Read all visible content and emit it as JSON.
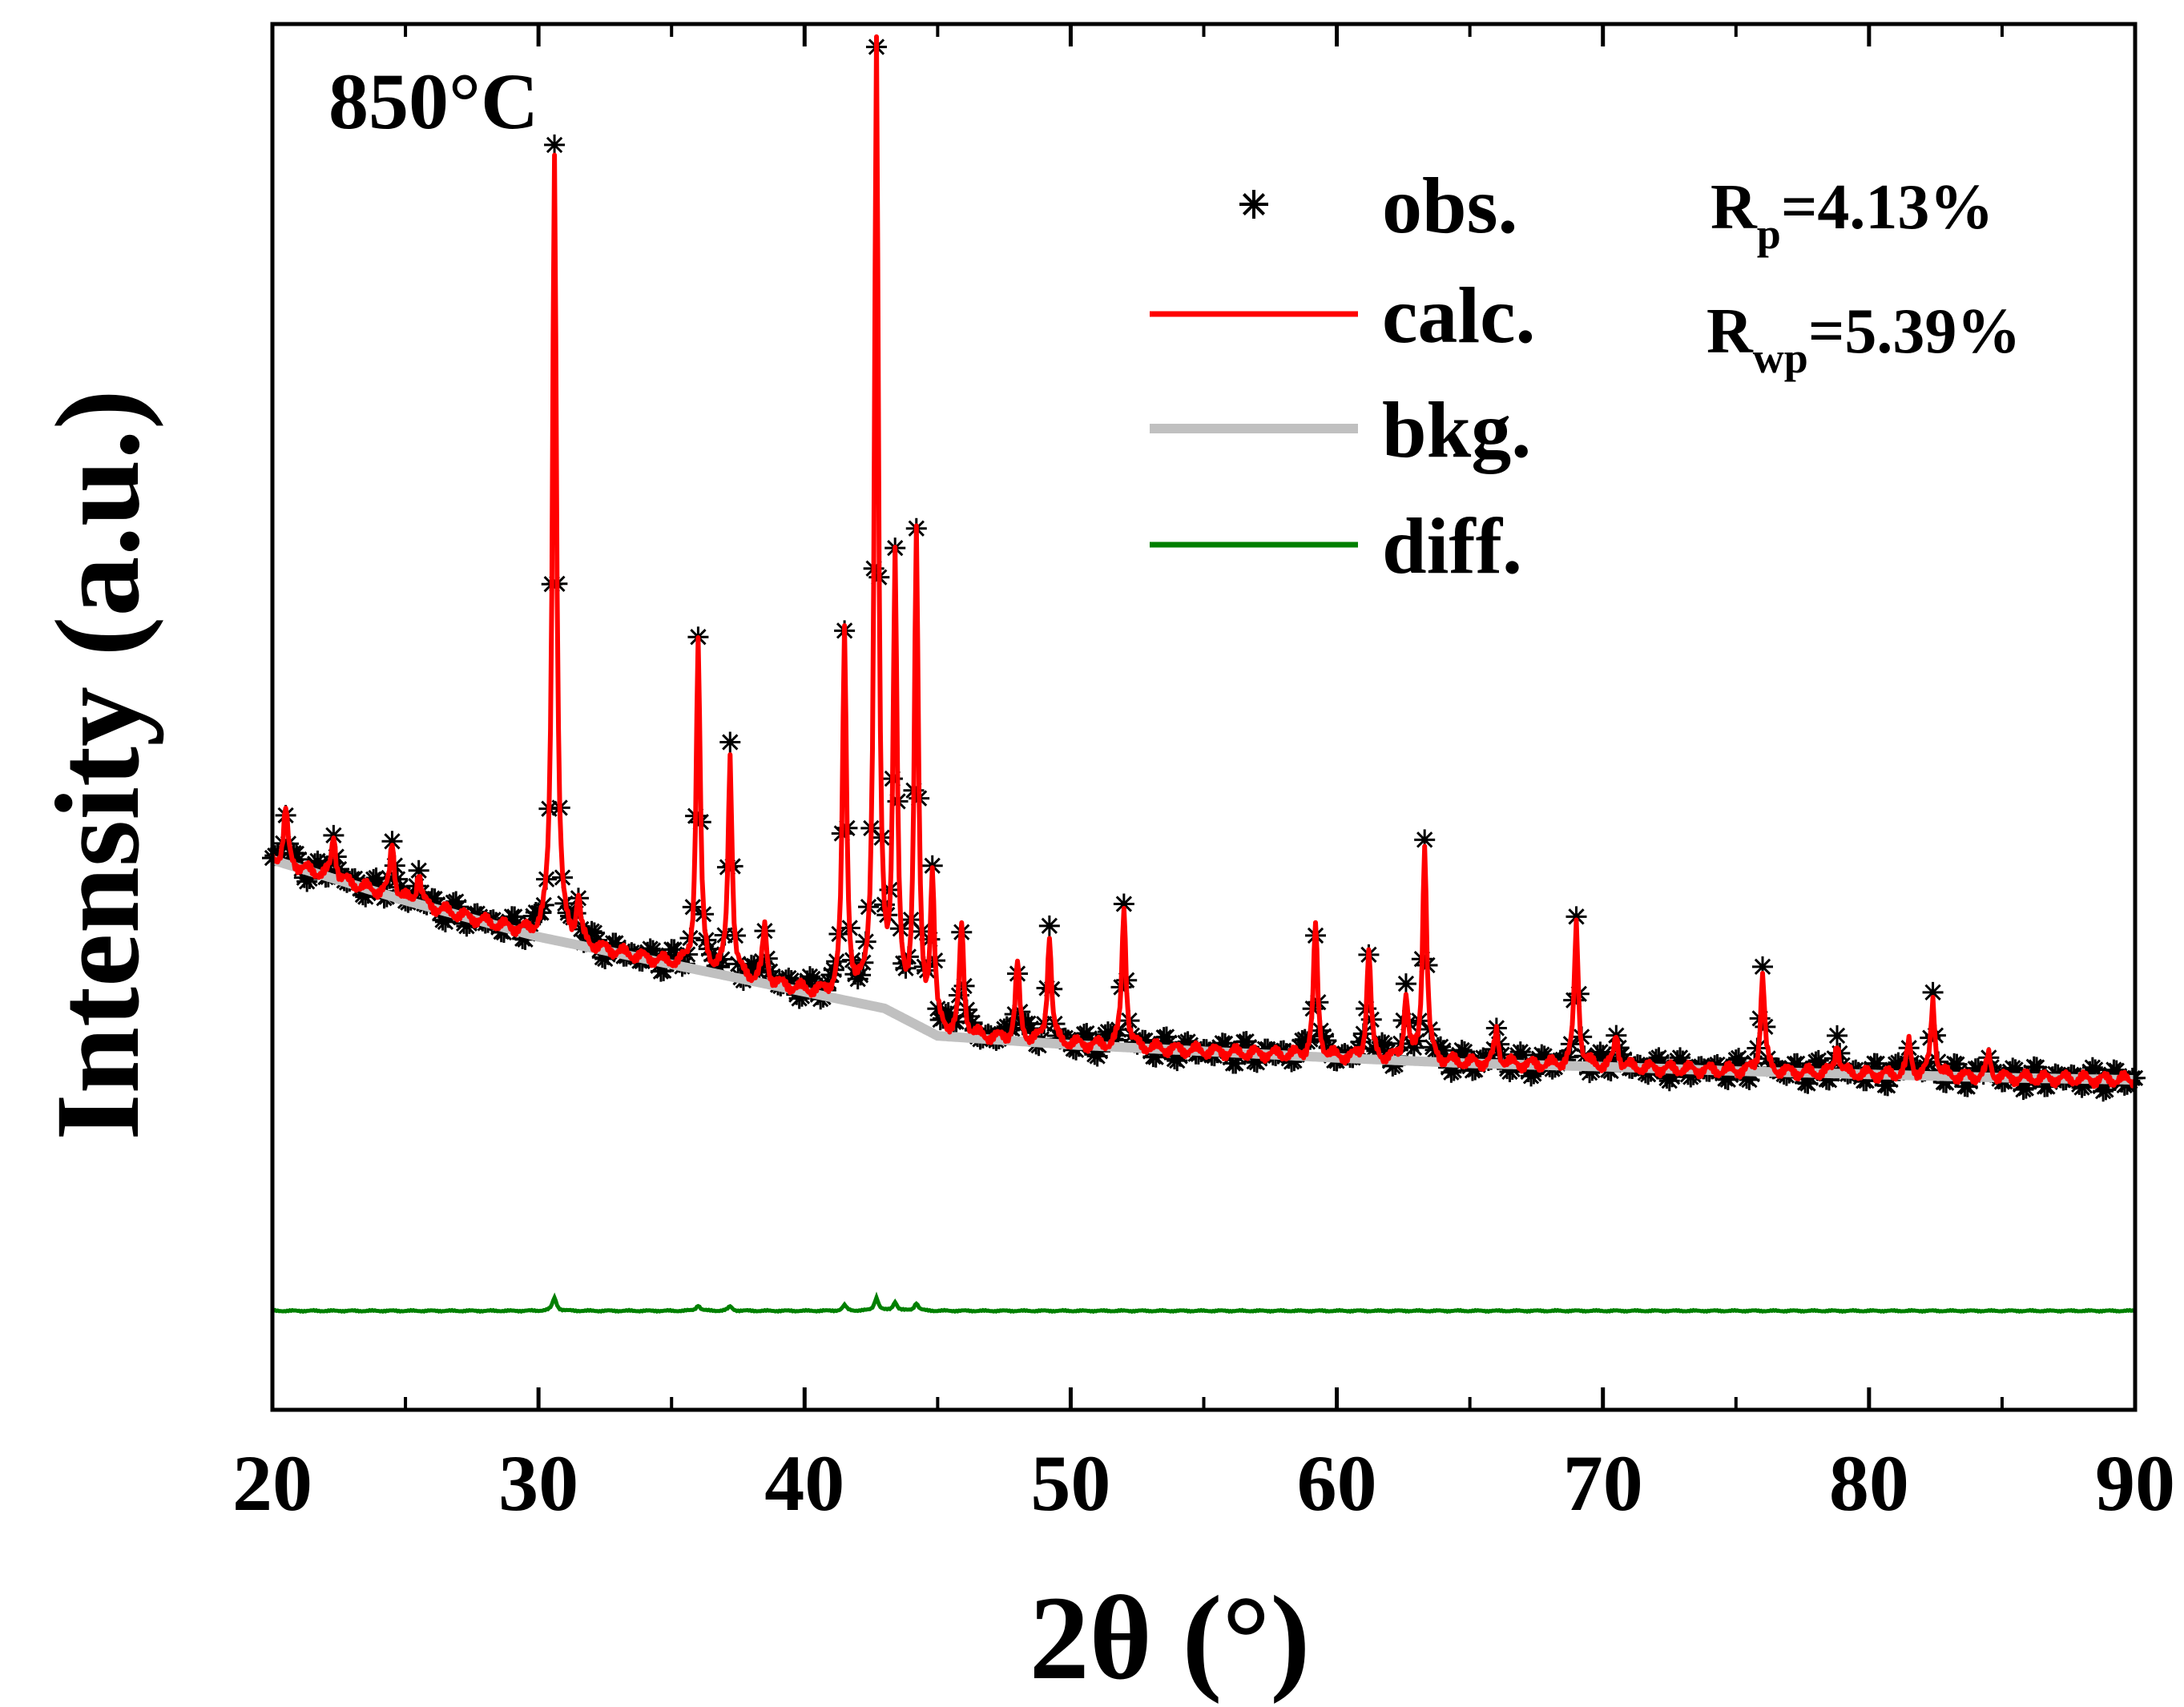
{
  "chart_data": {
    "type": "line",
    "title": "850°C",
    "xlabel": "2θ (°)",
    "ylabel": "Intensity (a.u.)",
    "xlim": [
      20,
      90
    ],
    "ylim": [
      -2.0,
      10.6
    ],
    "x_ticks": [
      20,
      30,
      40,
      50,
      60,
      70,
      80,
      90
    ],
    "x_tick_labels": [
      "20",
      "30",
      "40",
      "50",
      "60",
      "70",
      "80",
      "90"
    ],
    "y_ticks_shown": false,
    "legend_position": "top-right",
    "legend": [
      {
        "key": "obs",
        "label": "obs.",
        "marker": "asterisk",
        "color": "#000000"
      },
      {
        "key": "calc",
        "label": "calc.",
        "marker": "line",
        "color": "#ff0000"
      },
      {
        "key": "bkg",
        "label": "bkg.",
        "marker": "line",
        "color": "#c0c0c0"
      },
      {
        "key": "diff",
        "label": "diff.",
        "marker": "line",
        "color": "#008000"
      }
    ],
    "annotations": [
      {
        "id": "rp",
        "main": "R",
        "sub": "p",
        "value": "=4.13%"
      },
      {
        "id": "rwp",
        "main": "R",
        "sub": "wp",
        "value": "=5.39%"
      }
    ],
    "series": [
      {
        "name": "bkg.",
        "color": "#c0c0c0",
        "style": "line",
        "x": [
          20,
          25,
          30,
          35,
          40,
          43,
          45,
          50,
          55,
          60,
          65,
          70,
          75,
          80,
          85,
          90
        ],
        "y": [
          3.0,
          2.63,
          2.3,
          2.05,
          1.8,
          1.65,
          1.4,
          1.32,
          1.26,
          1.2,
          1.15,
          1.12,
          1.08,
          1.05,
          1.02,
          1.0
        ]
      },
      {
        "name": "calc.",
        "color": "#ff0000",
        "style": "line",
        "peaks": [
          {
            "x": 20.5,
            "h": 0.5
          },
          {
            "x": 22.3,
            "h": 0.4
          },
          {
            "x": 24.5,
            "h": 0.5
          },
          {
            "x": 25.5,
            "h": 0.3
          },
          {
            "x": 30.6,
            "h": 7.2
          },
          {
            "x": 31.5,
            "h": 0.4
          },
          {
            "x": 36.0,
            "h": 3.0
          },
          {
            "x": 37.2,
            "h": 2.0
          },
          {
            "x": 38.5,
            "h": 0.5
          },
          {
            "x": 41.5,
            "h": 3.3
          },
          {
            "x": 42.7,
            "h": 8.7
          },
          {
            "x": 43.4,
            "h": 4.0
          },
          {
            "x": 44.2,
            "h": 4.4
          },
          {
            "x": 44.8,
            "h": 1.4
          },
          {
            "x": 45.9,
            "h": 1.0
          },
          {
            "x": 48.0,
            "h": 0.7
          },
          {
            "x": 49.2,
            "h": 1.0
          },
          {
            "x": 52.0,
            "h": 1.3
          },
          {
            "x": 59.2,
            "h": 1.2
          },
          {
            "x": 61.2,
            "h": 1.0
          },
          {
            "x": 62.6,
            "h": 0.6
          },
          {
            "x": 63.3,
            "h": 2.0
          },
          {
            "x": 66.0,
            "h": 0.3
          },
          {
            "x": 69.0,
            "h": 1.3
          },
          {
            "x": 70.5,
            "h": 0.3
          },
          {
            "x": 76.0,
            "h": 0.9
          },
          {
            "x": 78.8,
            "h": 0.3
          },
          {
            "x": 81.5,
            "h": 0.3
          },
          {
            "x": 82.4,
            "h": 0.7
          },
          {
            "x": 84.5,
            "h": 0.2
          }
        ]
      },
      {
        "name": "obs.",
        "color": "#000000",
        "style": "asterisk",
        "note": "observed pattern follows calc. with small noise"
      },
      {
        "name": "diff.",
        "color": "#008000",
        "style": "line",
        "offset": -1.1,
        "features": [
          {
            "x": 30.6,
            "h": 0.12
          },
          {
            "x": 36.0,
            "h": 0.05
          },
          {
            "x": 37.2,
            "h": 0.04
          },
          {
            "x": 41.5,
            "h": 0.05
          },
          {
            "x": 42.7,
            "h": 0.12
          },
          {
            "x": 43.4,
            "h": 0.08
          },
          {
            "x": 44.2,
            "h": 0.07
          }
        ]
      }
    ]
  }
}
